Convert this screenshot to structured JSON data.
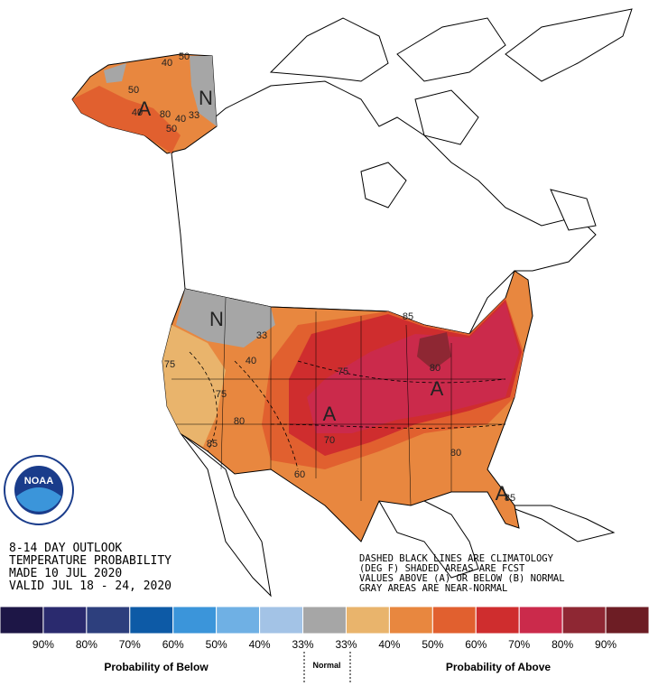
{
  "header": {
    "lines": [
      "8-14 DAY OUTLOOK",
      "TEMPERATURE PROBABILITY",
      "MADE  10 JUL 2020",
      "VALID  JUL 18 - 24, 2020"
    ]
  },
  "notes": [
    "DASHED BLACK LINES ARE CLIMATOLOGY",
    "(DEG F) SHADED AREAS ARE FCST",
    "VALUES ABOVE (A) OR BELOW (B) NORMAL",
    "GRAY AREAS ARE NEAR-NORMAL"
  ],
  "logo": "NOAA",
  "map_labels": [
    "40",
    "50",
    "40",
    "50",
    "A",
    "80",
    "40",
    "33",
    "50",
    "N",
    "N",
    "33",
    "40",
    "75",
    "75",
    "80",
    "85",
    "A",
    "70",
    "60",
    "75",
    "85",
    "80",
    "A",
    "80",
    "A",
    "85"
  ],
  "legend": {
    "colors": [
      "#1d1646",
      "#2a2a6e",
      "#2d3f7d",
      "#0d5aa6",
      "#3b95da",
      "#6fb0e4",
      "#a3c3e6",
      "#a6a6a6",
      "#e9b46c",
      "#e8873f",
      "#e1602f",
      "#cf2d2e",
      "#cb2a4b",
      "#8e2733",
      "#6d1d24"
    ],
    "labels": [
      "90%",
      "80%",
      "70%",
      "60%",
      "50%",
      "40%",
      "33%",
      "33%",
      "40%",
      "50%",
      "60%",
      "70%",
      "80%",
      "90%"
    ],
    "below": "Probability of Below",
    "normal": "Normal",
    "above": "Probability of Above"
  }
}
